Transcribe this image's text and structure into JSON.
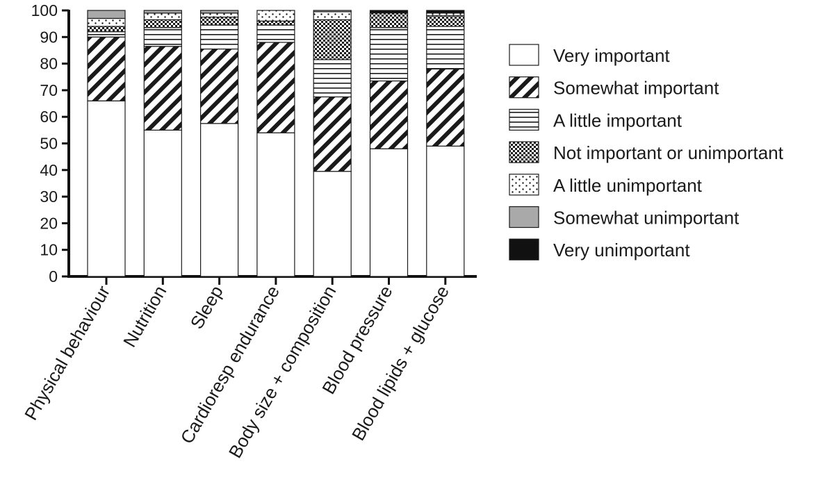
{
  "chart_data": {
    "type": "bar",
    "stacked": true,
    "title": "",
    "xlabel": "",
    "ylabel": "",
    "ylim": [
      0,
      100
    ],
    "yticks": [
      0,
      10,
      20,
      30,
      40,
      50,
      60,
      70,
      80,
      90,
      100
    ],
    "grid": false,
    "legend_position": "right",
    "categories": [
      "Physical behaviour",
      "Nutrition",
      "Sleep",
      "Cardioresp endurance",
      "Body size + composition",
      "Blood pressure",
      "Blood lipids + glucose"
    ],
    "series": [
      {
        "name": "Very important",
        "pattern": "white-fill",
        "values": [
          66,
          55,
          57.5,
          54,
          39.5,
          48,
          49
        ]
      },
      {
        "name": "Somewhat important",
        "pattern": "diagonal-hatch",
        "values": [
          24,
          31.5,
          28,
          34,
          28,
          25.5,
          29
        ]
      },
      {
        "name": "A little important",
        "pattern": "horizontal-lines",
        "values": [
          2,
          7,
          9,
          6.5,
          14,
          20,
          16
        ]
      },
      {
        "name": "Not important or unimportant",
        "pattern": "checkerboard",
        "values": [
          2,
          3,
          3,
          1.5,
          15,
          5.5,
          4
        ]
      },
      {
        "name": "A little unimportant",
        "pattern": "dotted",
        "values": [
          3,
          2.5,
          1.5,
          4,
          3,
          0,
          1
        ]
      },
      {
        "name": "Somewhat unimportant",
        "pattern": "gray-fill",
        "values": [
          3,
          1,
          1,
          0,
          0.5,
          0,
          0
        ]
      },
      {
        "name": "Very unimportant",
        "pattern": "black-fill",
        "values": [
          0,
          0,
          0,
          0,
          0,
          1,
          1
        ]
      }
    ]
  }
}
